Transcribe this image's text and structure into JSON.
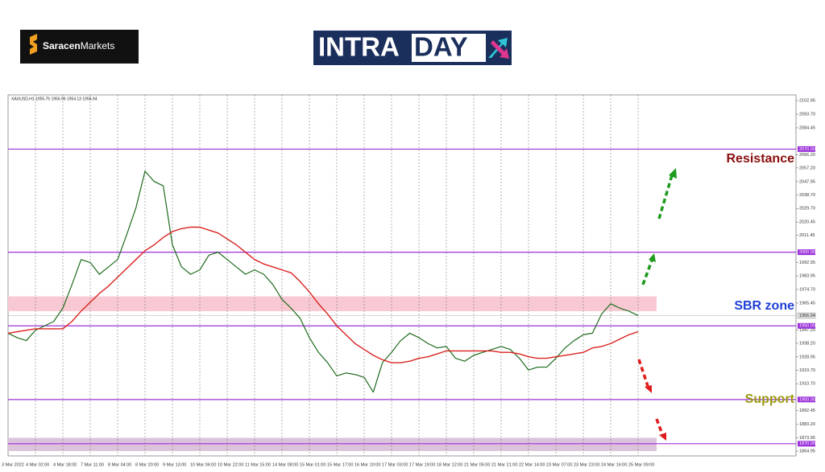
{
  "header": {
    "brand": [
      "Saracen",
      "Markets"
    ],
    "banner": [
      "INTRA",
      "DAY"
    ]
  },
  "chart_data": {
    "type": "line",
    "title": "XAUUSD,H1  1955.76 1956.96 1954.13 1956.94",
    "categories": [
      "3 Mar 2022",
      null,
      null,
      "4 Mar 02:00",
      null,
      null,
      "4 Mar 18:00",
      null,
      null,
      "7 Mar 11:00",
      null,
      null,
      "8 Mar 04:00",
      null,
      null,
      "8 Mar 20:00",
      null,
      null,
      "9 Mar 13:00",
      null,
      null,
      "10 Mar 06:00",
      null,
      null,
      "10 Mar 22:00",
      null,
      null,
      "11 Mar 15:00",
      null,
      null,
      "14 Mar 08:00",
      null,
      null,
      "15 Mar 01:00",
      null,
      null,
      "15 Mar 17:00",
      null,
      null,
      "16 Mar 10:00",
      null,
      null,
      "17 Mar 03:00",
      null,
      null,
      "17 Mar 19:00",
      null,
      null,
      "18 Mar 12:00",
      null,
      null,
      "21 Mar 05:00",
      null,
      null,
      "21 Mar 21:00",
      null,
      null,
      "22 Mar 14:00",
      null,
      null,
      "23 Mar 07:00",
      null,
      null,
      "23 Mar 23:00",
      null,
      null,
      "24 Mar 16:00",
      null,
      null,
      "25 Mar 09:00",
      null,
      null
    ],
    "series": [
      {
        "name": "XAUUSD",
        "color": "#1d6b1d",
        "values": [
          1945,
          1942,
          1940,
          1947,
          1950,
          1953,
          1962,
          1978,
          1995,
          1993,
          1985,
          1990,
          1995,
          2012,
          2030,
          2055,
          2048,
          2045,
          2005,
          1990,
          1985,
          1988,
          1998,
          2000,
          1995,
          1990,
          1985,
          1988,
          1985,
          1978,
          1968,
          1962,
          1955,
          1942,
          1932,
          1925,
          1916,
          1918,
          1917,
          1915,
          1905,
          1925,
          1932,
          1940,
          1945,
          1942,
          1938,
          1935,
          1936,
          1928,
          1926,
          1930,
          1932,
          1934,
          1936,
          1934,
          1928,
          1920,
          1922,
          1922,
          1928,
          1935,
          1940,
          1944,
          1945,
          1958,
          1965,
          1962,
          1960,
          1957,
          null,
          null
        ]
      },
      {
        "name": "MA",
        "color": "#d9231f",
        "values": [
          1945,
          1946,
          1947,
          1948,
          1948,
          1948,
          1948,
          1953,
          1960,
          1966,
          1972,
          1977,
          1983,
          1989,
          1995,
          2001,
          2005,
          2010,
          2014,
          2016,
          2017,
          2017,
          2015,
          2013,
          2009,
          2005,
          2000,
          1995,
          1992,
          1990,
          1988,
          1986,
          1980,
          1973,
          1965,
          1958,
          1950,
          1944,
          1938,
          1934,
          1930,
          1927,
          1925,
          1925,
          1926,
          1928,
          1929,
          1931,
          1933,
          1933,
          1933,
          1933,
          1933,
          1933,
          1932,
          1932,
          1931,
          1929,
          1928,
          1928,
          1929,
          1930,
          1931,
          1932,
          1935,
          1936,
          1938,
          1941,
          1944,
          1946,
          null,
          null
        ]
      }
    ],
    "ylim": [
      1861.7,
      2106.8
    ],
    "yticks": [
      2102.95,
      {
        "value": 2093.7,
        "label": "2093.70"
      },
      2084.45,
      {
        "value": 2066.2,
        "label": "2066.20"
      },
      {
        "value": 2057.2,
        "label": "2057.20"
      },
      2047.95,
      {
        "value": 2038.7,
        "label": "2038.70"
      },
      {
        "value": 2029.7,
        "label": "2029.70"
      },
      2020.45,
      2011.45,
      1992.95,
      1983.95,
      {
        "value": 1974.7,
        "label": "1974.70"
      },
      1965.45,
      {
        "value": 1947.2,
        "label": "1947.20"
      },
      {
        "value": 1938.2,
        "label": "1938.20"
      },
      1928.95,
      {
        "value": 1919.7,
        "label": "1919.70"
      },
      {
        "value": 1910.7,
        "label": "1910.70"
      },
      1892.45,
      {
        "value": 1883.2,
        "label": "1883.20"
      },
      1873.95,
      1864.95
    ],
    "levels": [
      {
        "value": 2070,
        "label": "2070.00"
      },
      {
        "value": 2000,
        "label": "2000.00"
      },
      {
        "value": 1950,
        "label": "1950.00"
      },
      {
        "value": 1900,
        "label": "1900.00"
      },
      {
        "value": 1870,
        "label": "1870.00"
      }
    ],
    "level_color": "#9b30d9",
    "zones": [
      {
        "from": 1960,
        "to": 1970,
        "color": "#f9c9d3"
      },
      {
        "from": 1865,
        "to": 1874,
        "color": "#dcc3dc"
      }
    ],
    "last_price": 1956.94,
    "grid": true,
    "annotations": [
      {
        "text": "Resistance",
        "color": "#8b0e0e"
      },
      {
        "text": "SBR zone",
        "color": "#1f3fd6"
      },
      {
        "text": "Support",
        "color": "#9a9a16"
      }
    ]
  }
}
